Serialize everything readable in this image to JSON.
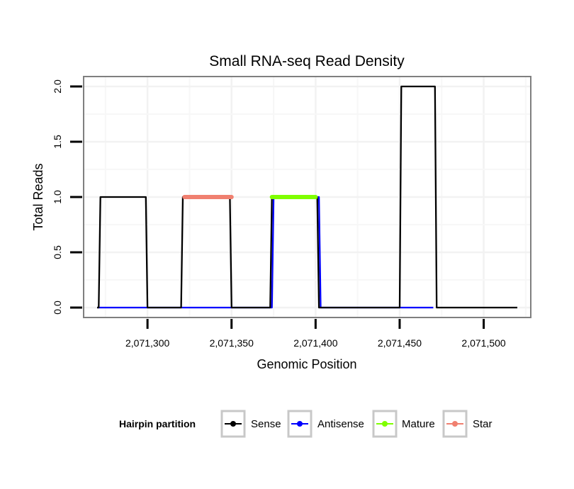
{
  "chart_data": {
    "type": "line",
    "title": "Small RNA-seq Read Density",
    "xlabel": "Genomic Position",
    "ylabel": "Total Reads",
    "xlim": [
      2071262,
      2071528
    ],
    "ylim": [
      -0.09,
      2.09
    ],
    "x_ticks": [
      2071300,
      2071350,
      2071400,
      2071450,
      2071500
    ],
    "x_tick_labels": [
      "2,071,300",
      "2,071,350",
      "2,071,400",
      "2,071,450",
      "2,071,500"
    ],
    "y_ticks": [
      0,
      0.5,
      1,
      1.5,
      2
    ],
    "y_tick_labels": [
      "0.0",
      "0.5",
      "1.0",
      "1.5",
      "2.0"
    ],
    "grid": true,
    "legend": {
      "title": "Hairpin partition",
      "position": "bottom",
      "entries": [
        "Sense",
        "Antisense",
        "Mature",
        "Star"
      ]
    },
    "series": [
      {
        "name": "Sense",
        "color": "#000000",
        "x": [
          2071270,
          2071271,
          2071272,
          2071299,
          2071300,
          2071301,
          2071319,
          2071320,
          2071321,
          2071349,
          2071350,
          2071351,
          2071372,
          2071373,
          2071374,
          2071401,
          2071402,
          2071403,
          2071449,
          2071450,
          2071451,
          2071471,
          2071472,
          2071473,
          2071520
        ],
        "y": [
          0,
          0,
          1,
          1,
          0,
          0,
          0,
          0,
          1,
          1,
          0,
          0,
          0,
          0,
          1,
          1,
          0,
          0,
          0,
          0,
          2,
          2,
          0,
          0,
          0
        ]
      },
      {
        "name": "Antisense",
        "color": "#0000ff",
        "x": [
          2071270,
          2071373,
          2071374,
          2071375,
          2071402,
          2071403,
          2071404,
          2071470
        ],
        "y": [
          0,
          0,
          0,
          1,
          1,
          0,
          0,
          0
        ]
      },
      {
        "name": "Mature",
        "color": "#7fff00",
        "x": [
          2071374,
          2071400
        ],
        "y": [
          1,
          1
        ]
      },
      {
        "name": "Star",
        "color": "#f08070",
        "x": [
          2071322,
          2071350
        ],
        "y": [
          1,
          1
        ]
      }
    ]
  }
}
